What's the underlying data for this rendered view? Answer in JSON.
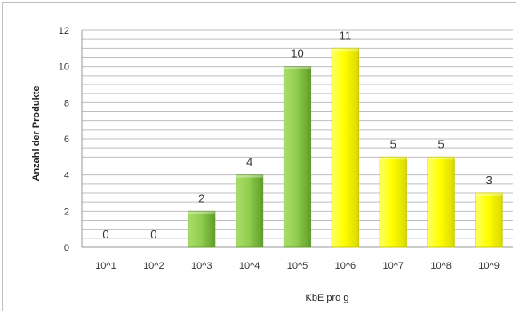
{
  "chart_data": {
    "type": "bar",
    "categories": [
      "10^1",
      "10^2",
      "10^3",
      "10^4",
      "10^5",
      "10^6",
      "10^7",
      "10^8",
      "10^9"
    ],
    "values": [
      0,
      0,
      2,
      4,
      10,
      11,
      5,
      5,
      3
    ],
    "data_labels": [
      "0",
      "0",
      "2",
      "4",
      "10",
      "11",
      "5",
      "5",
      "3"
    ],
    "bar_colors": [
      "#92d050",
      "#92d050",
      "#92d050",
      "#92d050",
      "#92d050",
      "#ffff00",
      "#ffff00",
      "#ffff00",
      "#ffff00"
    ],
    "title": "",
    "xlabel": "KbE pro g",
    "ylabel": "Anzahl der Produkte",
    "ylim": [
      0,
      12
    ],
    "yticks": [
      "0",
      "2",
      "4",
      "6",
      "8",
      "10",
      "12"
    ],
    "grid": true,
    "legend": "none"
  }
}
